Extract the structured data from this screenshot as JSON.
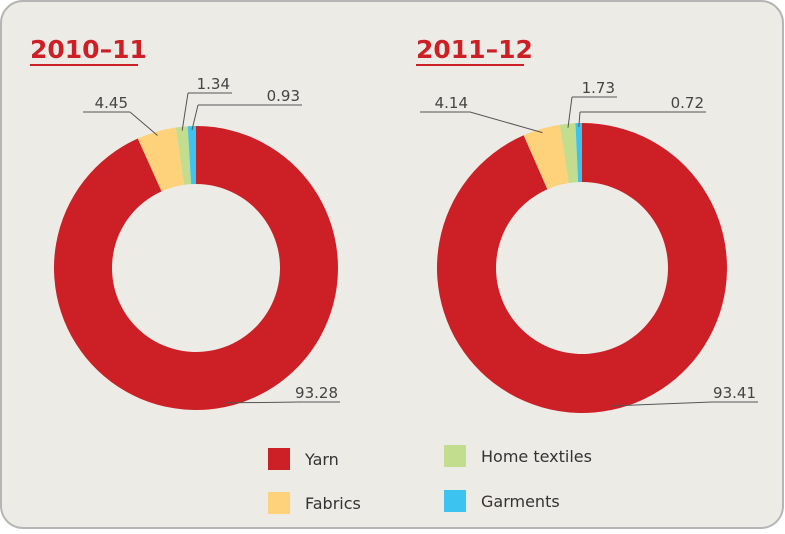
{
  "chart_data": [
    {
      "type": "donut",
      "title": "2010–11",
      "categories": [
        "Yarn",
        "Fabrics",
        "Home textiles",
        "Garments"
      ],
      "values": [
        93.28,
        4.45,
        1.34,
        0.93
      ],
      "colors": [
        "#cc1f26",
        "#fdd27a",
        "#c3dd8f",
        "#3cc3ef"
      ]
    },
    {
      "type": "donut",
      "title": "2011–12",
      "categories": [
        "Yarn",
        "Fabrics",
        "Home textiles",
        "Garments"
      ],
      "values": [
        93.41,
        4.14,
        1.73,
        0.72
      ],
      "colors": [
        "#cc1f26",
        "#fdd27a",
        "#c3dd8f",
        "#3cc3ef"
      ]
    }
  ]
}
